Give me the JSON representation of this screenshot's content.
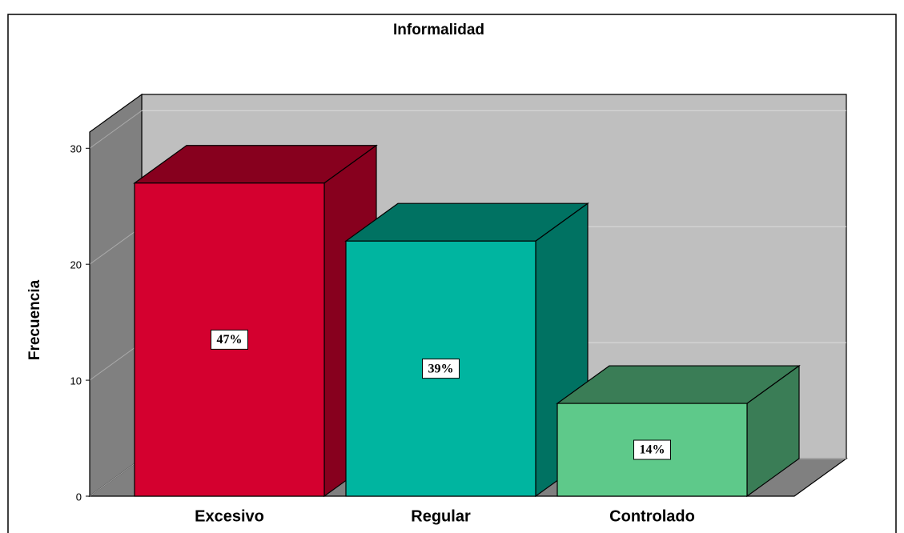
{
  "chart_data": {
    "type": "bar3d",
    "title": "Informalidad",
    "y_label": "Frecuencia",
    "categories": [
      "Excesivo",
      "Regular",
      "Controlado"
    ],
    "values": [
      27,
      22,
      8
    ],
    "percentages": [
      47,
      39,
      14
    ],
    "percentage_labels": [
      "47%",
      "39%",
      "14%"
    ],
    "colors": [
      "#d4002f",
      "#00b5a0",
      "#5ec98a"
    ],
    "shade_colors": [
      "#87001e",
      "#007262",
      "#3a7d56"
    ],
    "ylim": [
      0,
      31.4
    ],
    "yticks": [
      0,
      10,
      20,
      30
    ],
    "grid": true
  }
}
